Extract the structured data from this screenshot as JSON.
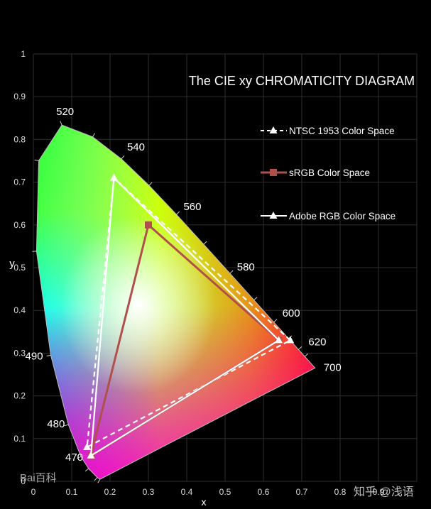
{
  "chart_data": {
    "type": "scatter",
    "title": "The CIE xy  CHROMATICITY  DIAGRAM",
    "xlabel": "x",
    "ylabel": "y",
    "xlim": [
      0,
      1
    ],
    "ylim": [
      0,
      1
    ],
    "x_ticks": [
      "0",
      "0.1",
      "0.2",
      "0.3",
      "0.4",
      "0.5",
      "0.6",
      "0.7",
      "0.8",
      "0.9"
    ],
    "y_ticks": [
      "0",
      "0.1",
      "0.2",
      "0.3",
      "0.4",
      "0.5",
      "0.6",
      "0.7",
      "0.8",
      "0.9",
      "1"
    ],
    "grid": true,
    "legend_position": "top-right",
    "spectral_locus": [
      [
        0.1741,
        0.005
      ],
      [
        0.1738,
        0.0049
      ],
      [
        0.1666,
        0.0089
      ],
      [
        0.144,
        0.0297
      ],
      [
        0.1241,
        0.0578
      ],
      [
        0.0913,
        0.1327
      ],
      [
        0.0454,
        0.295
      ],
      [
        0.0082,
        0.5384
      ],
      [
        0.0139,
        0.7502
      ],
      [
        0.0743,
        0.8338
      ],
      [
        0.1547,
        0.8059
      ],
      [
        0.2296,
        0.7543
      ],
      [
        0.3016,
        0.6923
      ],
      [
        0.3731,
        0.6245
      ],
      [
        0.4441,
        0.5547
      ],
      [
        0.5125,
        0.4866
      ],
      [
        0.5752,
        0.4242
      ],
      [
        0.627,
        0.3725
      ],
      [
        0.6658,
        0.334
      ],
      [
        0.6915,
        0.3083
      ],
      [
        0.7079,
        0.292
      ],
      [
        0.7347,
        0.2653
      ]
    ],
    "wavelength_labels": [
      {
        "label": "470",
        "x": 0.1241,
        "y": 0.0578
      },
      {
        "label": "480",
        "x": 0.0913,
        "y": 0.1327
      },
      {
        "label": "490",
        "x": 0.0454,
        "y": 0.295
      },
      {
        "label": "520",
        "x": 0.0743,
        "y": 0.8338
      },
      {
        "label": "540",
        "x": 0.2296,
        "y": 0.7543
      },
      {
        "label": "560",
        "x": 0.3731,
        "y": 0.6245
      },
      {
        "label": "580",
        "x": 0.5125,
        "y": 0.4866
      },
      {
        "label": "600",
        "x": 0.627,
        "y": 0.3725
      },
      {
        "label": "620",
        "x": 0.6915,
        "y": 0.3083
      },
      {
        "label": "700",
        "x": 0.7347,
        "y": 0.2653
      }
    ],
    "series": [
      {
        "name": "NTSC 1953 Color Space",
        "style": "dashed",
        "color": "#ffffff",
        "marker": "triangle",
        "points": [
          [
            0.67,
            0.33
          ],
          [
            0.21,
            0.71
          ],
          [
            0.14,
            0.08
          ]
        ]
      },
      {
        "name": "sRGB Color Space",
        "style": "solid",
        "color": "#b0504d",
        "marker": "square",
        "points": [
          [
            0.64,
            0.33
          ],
          [
            0.3,
            0.6
          ],
          [
            0.15,
            0.06
          ]
        ]
      },
      {
        "name": "Adobe RGB Color Space",
        "style": "solid",
        "color": "#ffffff",
        "marker": "triangle",
        "points": [
          [
            0.64,
            0.33
          ],
          [
            0.21,
            0.71
          ],
          [
            0.15,
            0.06
          ]
        ]
      }
    ]
  },
  "watermarks": {
    "left": "Bai百科",
    "right": "知乎 @浅语"
  }
}
